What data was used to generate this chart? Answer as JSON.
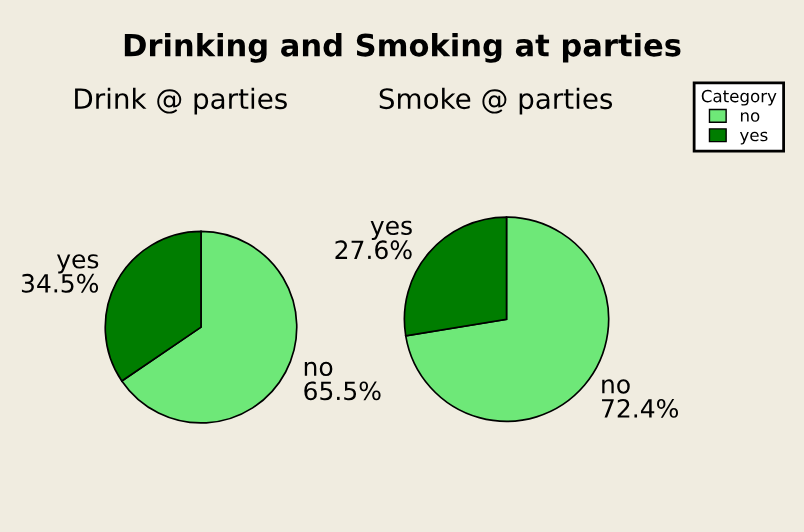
{
  "chart_data": [
    {
      "type": "pie",
      "title": "Drinking and Smoking at parties",
      "subtitle": "Drink @ parties",
      "categories": [
        "no",
        "yes"
      ],
      "values": [
        65.5,
        34.5
      ],
      "colors": [
        "#6ee878",
        "#007d00"
      ],
      "value_labels": [
        "65.5%",
        "34.5%"
      ],
      "legend": false
    },
    {
      "type": "pie",
      "title": "Smoke @ parties",
      "categories": [
        "no",
        "yes"
      ],
      "values": [
        72.4,
        27.6
      ],
      "colors": [
        "#6ee878",
        "#007d00"
      ],
      "value_labels": [
        "72.4%",
        "27.6%"
      ],
      "legend": "right",
      "legend_title": "Category"
    }
  ]
}
